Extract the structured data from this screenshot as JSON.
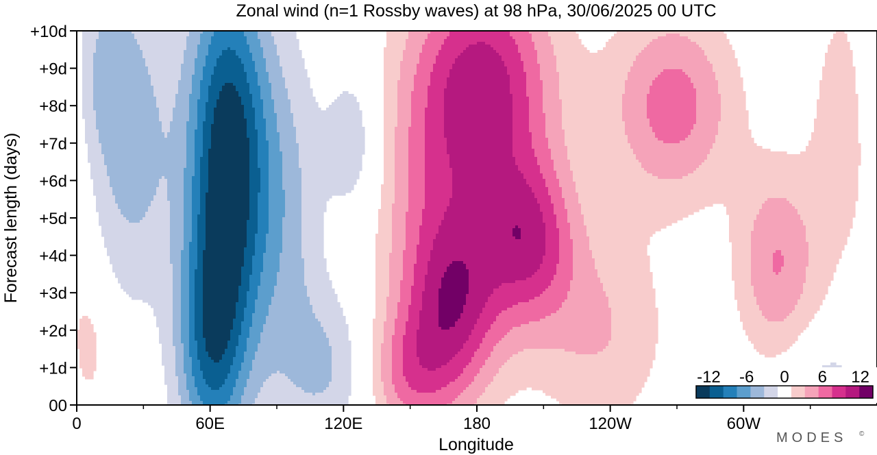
{
  "chart_data": {
    "type": "heatmap",
    "title": "Zonal wind (n=1 Rossby waves) at 98 hPa,  30/06/2025  00 UTC",
    "xlabel": "Longitude",
    "ylabel": "Forecast length (days)",
    "x_ticks": [
      {
        "lon": 0,
        "label": "0"
      },
      {
        "lon": 60,
        "label": "60E"
      },
      {
        "lon": 120,
        "label": "120E"
      },
      {
        "lon": 180,
        "label": "180"
      },
      {
        "lon": 240,
        "label": "120W"
      },
      {
        "lon": 300,
        "label": "60W"
      }
    ],
    "x_minor": [
      30,
      90,
      150,
      210,
      270,
      330
    ],
    "xlim": [
      0,
      360
    ],
    "y_ticks": [
      {
        "day": 0,
        "label": "00"
      },
      {
        "day": 1,
        "label": "+1d"
      },
      {
        "day": 2,
        "label": "+2d"
      },
      {
        "day": 3,
        "label": "+3d"
      },
      {
        "day": 4,
        "label": "+4d"
      },
      {
        "day": 5,
        "label": "+5d"
      },
      {
        "day": 6,
        "label": "+6d"
      },
      {
        "day": 7,
        "label": "+7d"
      },
      {
        "day": 8,
        "label": "+8d"
      },
      {
        "day": 9,
        "label": "+9d"
      },
      {
        "day": 10,
        "label": "+10d"
      }
    ],
    "ylim": [
      0,
      10
    ],
    "levels": [
      -14,
      -12,
      -10,
      -8,
      -6,
      -4,
      -2,
      2,
      4,
      6,
      8,
      10,
      12,
      14
    ],
    "colors": [
      "#0a3b5c",
      "#0a5f91",
      "#2480b9",
      "#5c9ecd",
      "#9db8da",
      "#d3d6e8",
      "#ffffff",
      "#f8cccc",
      "#f5a3b9",
      "#ef69a2",
      "#d6308d",
      "#b5197f",
      "#720066"
    ],
    "colorbar_labels": [
      {
        "value": -12,
        "label": "-12"
      },
      {
        "value": -6,
        "label": "-6"
      },
      {
        "value": 0,
        "label": "0"
      },
      {
        "value": 6,
        "label": "6"
      },
      {
        "value": 12,
        "label": "12"
      }
    ],
    "features": [
      {
        "amp": -14,
        "lon": 68,
        "day": 6.5,
        "sx": 13,
        "sy": 3.6
      },
      {
        "amp": -8,
        "lon": 60,
        "day": 1.5,
        "sx": 11,
        "sy": 2.2
      },
      {
        "amp": -4,
        "lon": 95,
        "day": 5.0,
        "sx": 12,
        "sy": 3.5
      },
      {
        "amp": -5,
        "lon": 25,
        "day": 7.0,
        "sx": 13,
        "sy": 3.0
      },
      {
        "amp": -4,
        "lon": 115,
        "day": 1.0,
        "sx": 15,
        "sy": 1.5
      },
      {
        "amp": -4,
        "lon": 125,
        "day": 7.0,
        "sx": 9,
        "sy": 1.5
      },
      {
        "amp": -3,
        "lon": 10,
        "day": 9.0,
        "sx": 10,
        "sy": 1.8
      },
      {
        "amp": -3,
        "lon": 338,
        "day": 0.7,
        "sx": 12,
        "sy": 0.8
      },
      {
        "amp": 10,
        "lon": 185,
        "day": 8.6,
        "sx": 22,
        "sy": 2.2
      },
      {
        "amp": 9,
        "lon": 203,
        "day": 4.4,
        "sx": 15,
        "sy": 1.6
      },
      {
        "amp": 8,
        "lon": 170,
        "day": 2.6,
        "sx": 15,
        "sy": 1.8
      },
      {
        "amp": 5,
        "lon": 148,
        "day": 0.8,
        "sx": 14,
        "sy": 1.2
      },
      {
        "amp": 7,
        "lon": 268,
        "day": 8.0,
        "sx": 20,
        "sy": 1.8
      },
      {
        "amp": 6,
        "lon": 315,
        "day": 3.8,
        "sx": 13,
        "sy": 1.8
      },
      {
        "amp": 5,
        "lon": 160,
        "day": 5.2,
        "sx": 20,
        "sy": 3.5
      },
      {
        "amp": 4,
        "lon": 235,
        "day": 2.0,
        "sx": 22,
        "sy": 2.0
      },
      {
        "amp": 3,
        "lon": 345,
        "day": 7.5,
        "sx": 12,
        "sy": 3.0
      },
      {
        "amp": 3,
        "lon": 5,
        "day": 1.5,
        "sx": 6,
        "sy": 1.2
      }
    ],
    "branding": "MODES",
    "branding_mark": "©"
  }
}
